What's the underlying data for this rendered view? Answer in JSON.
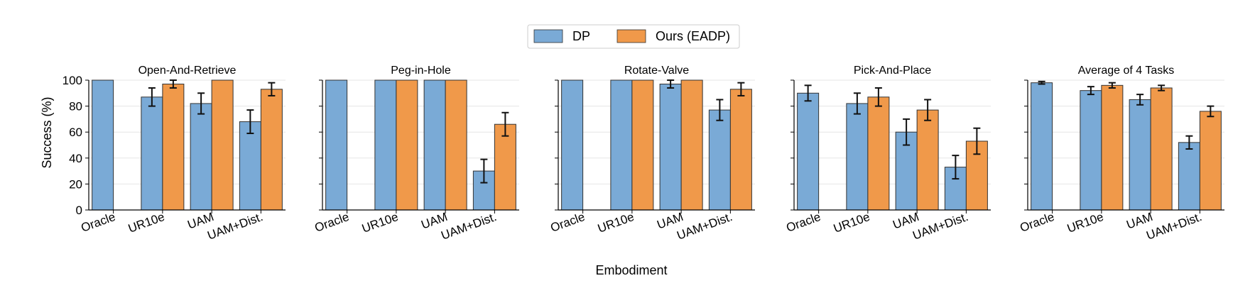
{
  "figure": {
    "ylabel": "Success (%)",
    "xlabel": "Embodiment"
  },
  "legend": {
    "items": [
      {
        "label": "DP",
        "color": "#7aaad6"
      },
      {
        "label": "Ours (EADP)",
        "color": "#f0994a"
      }
    ],
    "placement": "top-center"
  },
  "colors": {
    "dp": "#7aaad6",
    "ours": "#f0994a",
    "edge": "#333333",
    "grid": "#e6e6e6"
  },
  "chart_data": [
    {
      "type": "bar",
      "title": "Open-And-Retrieve",
      "categories": [
        "Oracle",
        "UR10e",
        "UAM",
        "UAM+Dist."
      ],
      "ylim": [
        0,
        100
      ],
      "yticks": [
        0,
        20,
        40,
        60,
        80,
        100
      ],
      "grid": true,
      "series": [
        {
          "name": "DP",
          "values": [
            100,
            87,
            82,
            68
          ],
          "errors": [
            0,
            7,
            8,
            9
          ]
        },
        {
          "name": "Ours (EADP)",
          "values": [
            null,
            97,
            100,
            93
          ],
          "errors": [
            null,
            3,
            0,
            5
          ]
        }
      ]
    },
    {
      "type": "bar",
      "title": "Peg-in-Hole",
      "categories": [
        "Oracle",
        "UR10e",
        "UAM",
        "UAM+Dist."
      ],
      "ylim": [
        0,
        100
      ],
      "yticks": [
        0,
        20,
        40,
        60,
        80,
        100
      ],
      "grid": true,
      "series": [
        {
          "name": "DP",
          "values": [
            100,
            100,
            100,
            30
          ],
          "errors": [
            0,
            0,
            0,
            9
          ]
        },
        {
          "name": "Ours (EADP)",
          "values": [
            null,
            100,
            100,
            66
          ],
          "errors": [
            null,
            0,
            0,
            9
          ]
        }
      ]
    },
    {
      "type": "bar",
      "title": "Rotate-Valve",
      "categories": [
        "Oracle",
        "UR10e",
        "UAM",
        "UAM+Dist."
      ],
      "ylim": [
        0,
        100
      ],
      "yticks": [
        0,
        20,
        40,
        60,
        80,
        100
      ],
      "grid": true,
      "series": [
        {
          "name": "DP",
          "values": [
            100,
            100,
            97,
            77
          ],
          "errors": [
            0,
            0,
            3,
            8
          ]
        },
        {
          "name": "Ours (EADP)",
          "values": [
            null,
            100,
            100,
            93
          ],
          "errors": [
            null,
            0,
            0,
            5
          ]
        }
      ]
    },
    {
      "type": "bar",
      "title": "Pick-And-Place",
      "categories": [
        "Oracle",
        "UR10e",
        "UAM",
        "UAM+Dist."
      ],
      "ylim": [
        0,
        100
      ],
      "yticks": [
        0,
        20,
        40,
        60,
        80,
        100
      ],
      "grid": true,
      "series": [
        {
          "name": "DP",
          "values": [
            90,
            82,
            60,
            33
          ],
          "errors": [
            6,
            8,
            10,
            9
          ]
        },
        {
          "name": "Ours (EADP)",
          "values": [
            null,
            87,
            77,
            53
          ],
          "errors": [
            null,
            7,
            8,
            10
          ]
        }
      ]
    },
    {
      "type": "bar",
      "title": "Average of 4 Tasks",
      "categories": [
        "Oracle",
        "UR10e",
        "UAM",
        "UAM+Dist."
      ],
      "ylim": [
        0,
        100
      ],
      "yticks": [
        0,
        20,
        40,
        60,
        80,
        100
      ],
      "grid": true,
      "series": [
        {
          "name": "DP",
          "values": [
            98,
            92,
            85,
            52
          ],
          "errors": [
            1,
            3,
            4,
            5
          ]
        },
        {
          "name": "Ours (EADP)",
          "values": [
            null,
            96,
            94,
            76
          ],
          "errors": [
            null,
            2,
            2,
            4
          ]
        }
      ]
    }
  ]
}
